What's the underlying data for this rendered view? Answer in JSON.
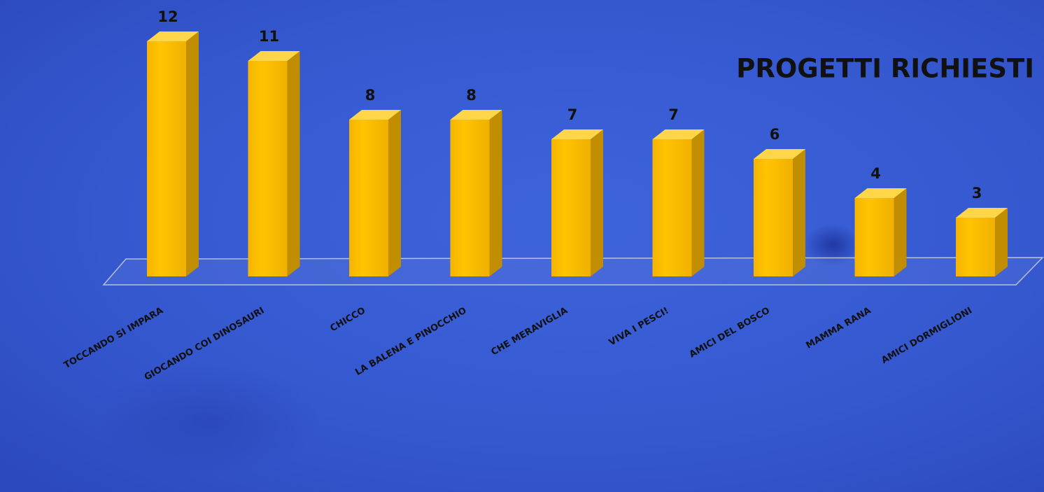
{
  "chart_data": {
    "type": "bar3d",
    "title": "PROGETTI RICHIESTI",
    "categories": [
      "TOCCANDO SI IMPARA",
      "GIOCANDO COI DINOSAURI",
      "CHICCO",
      "LA BALENA E PINOCCHIO",
      "CHE MERAVIGLIA",
      "VIVA I PESCI!",
      "AMICI DEL BOSCO",
      "MAMMA RANA",
      "AMICI DORMIGLIONI"
    ],
    "values": [
      12,
      11,
      8,
      8,
      7,
      7,
      6,
      4,
      3
    ],
    "color": "#ffc000",
    "ylim": [
      0,
      12
    ]
  }
}
